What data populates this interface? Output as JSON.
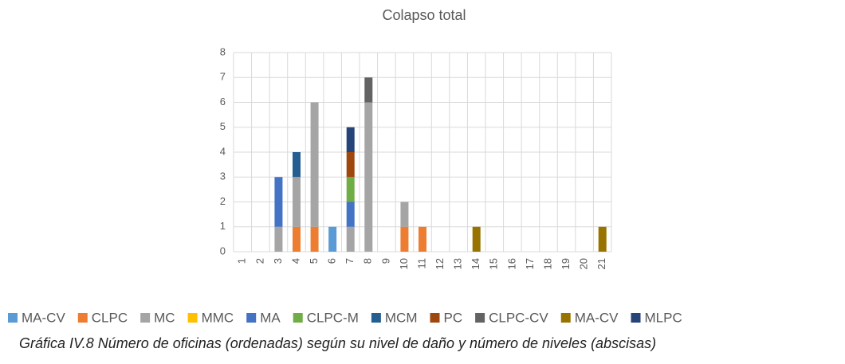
{
  "chart_data": {
    "type": "bar",
    "stacked": true,
    "title": "Colapso total",
    "caption": "Gráfica IV.8 Número de oficinas (ordenadas) según su nivel de daño y número de niveles (abscisas)",
    "categories": [
      "1",
      "2",
      "3",
      "4",
      "5",
      "6",
      "7",
      "8",
      "9",
      "10",
      "11",
      "12",
      "13",
      "14",
      "15",
      "16",
      "17",
      "18",
      "19",
      "20",
      "21"
    ],
    "series": [
      {
        "name": "MA-CV",
        "color": "#5b9bd5",
        "values": [
          0,
          0,
          0,
          0,
          0,
          1,
          0,
          0,
          0,
          0,
          0,
          0,
          0,
          0,
          0,
          0,
          0,
          0,
          0,
          0,
          0
        ]
      },
      {
        "name": "CLPC",
        "color": "#ed7d31",
        "values": [
          0,
          0,
          0,
          1,
          1,
          0,
          0,
          0,
          0,
          1,
          1,
          0,
          0,
          0,
          0,
          0,
          0,
          0,
          0,
          0,
          0
        ]
      },
      {
        "name": "MC",
        "color": "#a5a5a5",
        "values": [
          0,
          0,
          1,
          2,
          5,
          0,
          1,
          6,
          0,
          1,
          0,
          0,
          0,
          0,
          0,
          0,
          0,
          0,
          0,
          0,
          0
        ]
      },
      {
        "name": "MMC",
        "color": "#ffc000",
        "values": [
          0,
          0,
          0,
          0,
          0,
          0,
          0,
          0,
          0,
          0,
          0,
          0,
          0,
          0,
          0,
          0,
          0,
          0,
          0,
          0,
          0
        ]
      },
      {
        "name": "MA",
        "color": "#4472c4",
        "values": [
          0,
          0,
          2,
          0,
          0,
          0,
          1,
          0,
          0,
          0,
          0,
          0,
          0,
          0,
          0,
          0,
          0,
          0,
          0,
          0,
          0
        ]
      },
      {
        "name": "CLPC-M",
        "color": "#70ad47",
        "values": [
          0,
          0,
          0,
          0,
          0,
          0,
          1,
          0,
          0,
          0,
          0,
          0,
          0,
          0,
          0,
          0,
          0,
          0,
          0,
          0,
          0
        ]
      },
      {
        "name": "MCM",
        "color": "#255e91",
        "values": [
          0,
          0,
          0,
          1,
          0,
          0,
          0,
          0,
          0,
          0,
          0,
          0,
          0,
          0,
          0,
          0,
          0,
          0,
          0,
          0,
          0
        ]
      },
      {
        "name": "PC",
        "color": "#9e480e",
        "values": [
          0,
          0,
          0,
          0,
          0,
          0,
          1,
          0,
          0,
          0,
          0,
          0,
          0,
          0,
          0,
          0,
          0,
          0,
          0,
          0,
          0
        ]
      },
      {
        "name": "CLPC-CV",
        "color": "#636363",
        "values": [
          0,
          0,
          0,
          0,
          0,
          0,
          0,
          1,
          0,
          0,
          0,
          0,
          0,
          0,
          0,
          0,
          0,
          0,
          0,
          0,
          0
        ]
      },
      {
        "name": "MA-CV",
        "color": "#997300",
        "values": [
          0,
          0,
          0,
          0,
          0,
          0,
          0,
          0,
          0,
          0,
          0,
          0,
          0,
          1,
          0,
          0,
          0,
          0,
          0,
          0,
          1
        ]
      },
      {
        "name": "MLPC",
        "color": "#264478",
        "values": [
          0,
          0,
          0,
          0,
          0,
          0,
          1,
          0,
          0,
          0,
          0,
          0,
          0,
          0,
          0,
          0,
          0,
          0,
          0,
          0,
          0
        ]
      }
    ],
    "ylim": [
      0,
      8
    ],
    "yticks": [
      0,
      1,
      2,
      3,
      4,
      5,
      6,
      7,
      8
    ],
    "grid": true
  }
}
